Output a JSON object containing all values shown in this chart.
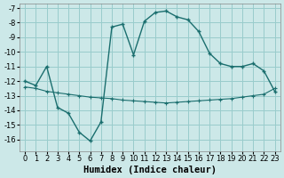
{
  "xlabel": "Humidex (Indice chaleur)",
  "bg_color": "#cce8e8",
  "grid_color": "#99cccc",
  "line_color": "#1a6e6e",
  "xlim": [
    -0.5,
    23.5
  ],
  "ylim": [
    -16.8,
    -6.7
  ],
  "yticks": [
    -16,
    -15,
    -14,
    -13,
    -12,
    -11,
    -10,
    -9,
    -8,
    -7
  ],
  "xticks": [
    0,
    1,
    2,
    3,
    4,
    5,
    6,
    7,
    8,
    9,
    10,
    11,
    12,
    13,
    14,
    15,
    16,
    17,
    18,
    19,
    20,
    21,
    22,
    23
  ],
  "curve1_x": [
    0,
    1,
    2,
    3,
    4,
    5,
    6,
    7,
    8,
    9,
    10,
    11,
    12,
    13,
    14,
    15,
    16,
    17,
    18,
    19,
    20,
    21,
    22,
    23
  ],
  "curve1_y": [
    -12.0,
    -12.3,
    -11.0,
    -13.8,
    -14.2,
    -15.5,
    -16.1,
    -14.8,
    -8.3,
    -8.1,
    -10.2,
    -7.9,
    -7.3,
    -7.2,
    -7.6,
    -7.8,
    -8.6,
    -10.1,
    -10.8,
    -11.0,
    -11.0,
    -10.8,
    -11.3,
    -12.7
  ],
  "curve2_x": [
    0,
    1,
    2,
    3,
    4,
    5,
    6,
    7,
    8,
    9,
    10,
    11,
    12,
    13,
    14,
    15,
    16,
    17,
    18,
    19,
    20,
    21,
    22,
    23
  ],
  "curve2_y": [
    -12.4,
    -12.5,
    -12.7,
    -12.8,
    -12.9,
    -13.0,
    -13.1,
    -13.15,
    -13.2,
    -13.3,
    -13.35,
    -13.4,
    -13.45,
    -13.5,
    -13.45,
    -13.4,
    -13.35,
    -13.3,
    -13.25,
    -13.2,
    -13.1,
    -13.0,
    -12.9,
    -12.5
  ],
  "tick_fontsize": 6.0,
  "xlabel_fontsize": 7.5
}
